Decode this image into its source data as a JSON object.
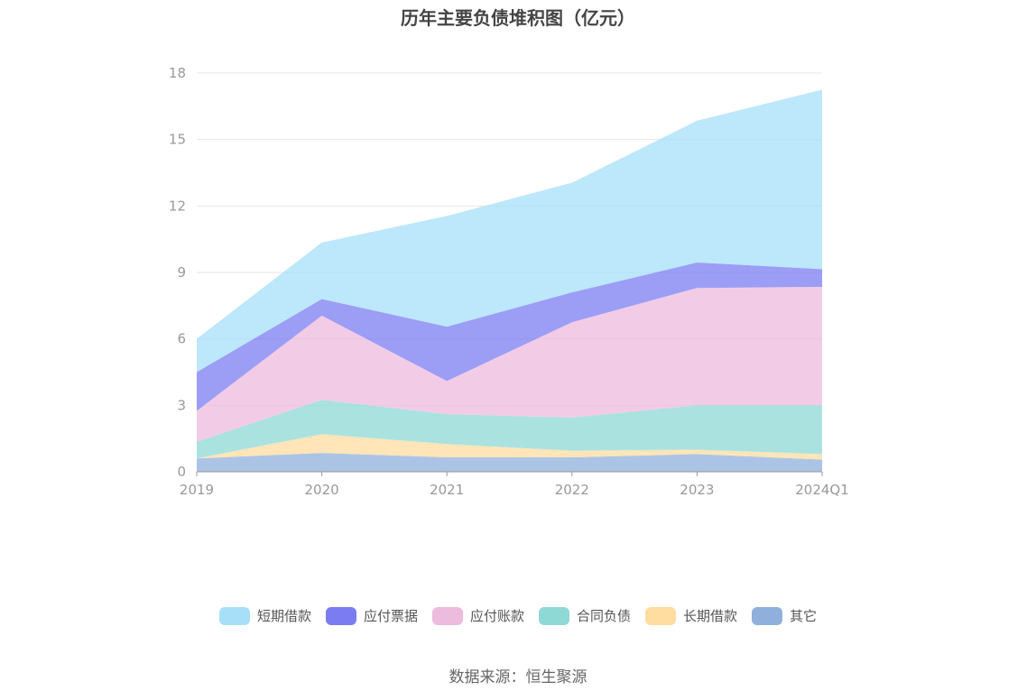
{
  "chart_data": {
    "type": "area",
    "title": "历年主要负债堆积图（亿元）",
    "categories": [
      "2019",
      "2020",
      "2021",
      "2022",
      "2023",
      "2024Q1"
    ],
    "ylim": [
      0,
      18
    ],
    "yticks": [
      0,
      3,
      6,
      9,
      12,
      15,
      18
    ],
    "grid": true,
    "stacked": true,
    "legend_position": "bottom",
    "series": [
      {
        "name": "其它",
        "color": "#8FB0DC",
        "values": [
          0.6,
          0.85,
          0.65,
          0.65,
          0.8,
          0.55
        ]
      },
      {
        "name": "长期借款",
        "color": "#FFDCA0",
        "values": [
          0.0,
          0.85,
          0.6,
          0.3,
          0.2,
          0.25
        ]
      },
      {
        "name": "合同负债",
        "color": "#8ED8D6",
        "values": [
          0.75,
          1.55,
          1.35,
          1.5,
          2.0,
          2.2
        ]
      },
      {
        "name": "应付账款",
        "color": "#EDBBDD",
        "values": [
          1.4,
          3.8,
          1.5,
          4.3,
          5.3,
          5.35
        ]
      },
      {
        "name": "应付票据",
        "color": "#7B7CF2",
        "values": [
          1.75,
          0.75,
          2.45,
          1.35,
          1.15,
          0.8
        ]
      },
      {
        "name": "短期借款",
        "color": "#A7DFF9",
        "values": [
          1.5,
          2.55,
          5.0,
          4.95,
          6.4,
          8.1
        ]
      }
    ],
    "legend_order": [
      "短期借款",
      "应付票据",
      "应付账款",
      "合同负债",
      "长期借款",
      "其它"
    ]
  },
  "source_text": "数据来源：恒生聚源"
}
